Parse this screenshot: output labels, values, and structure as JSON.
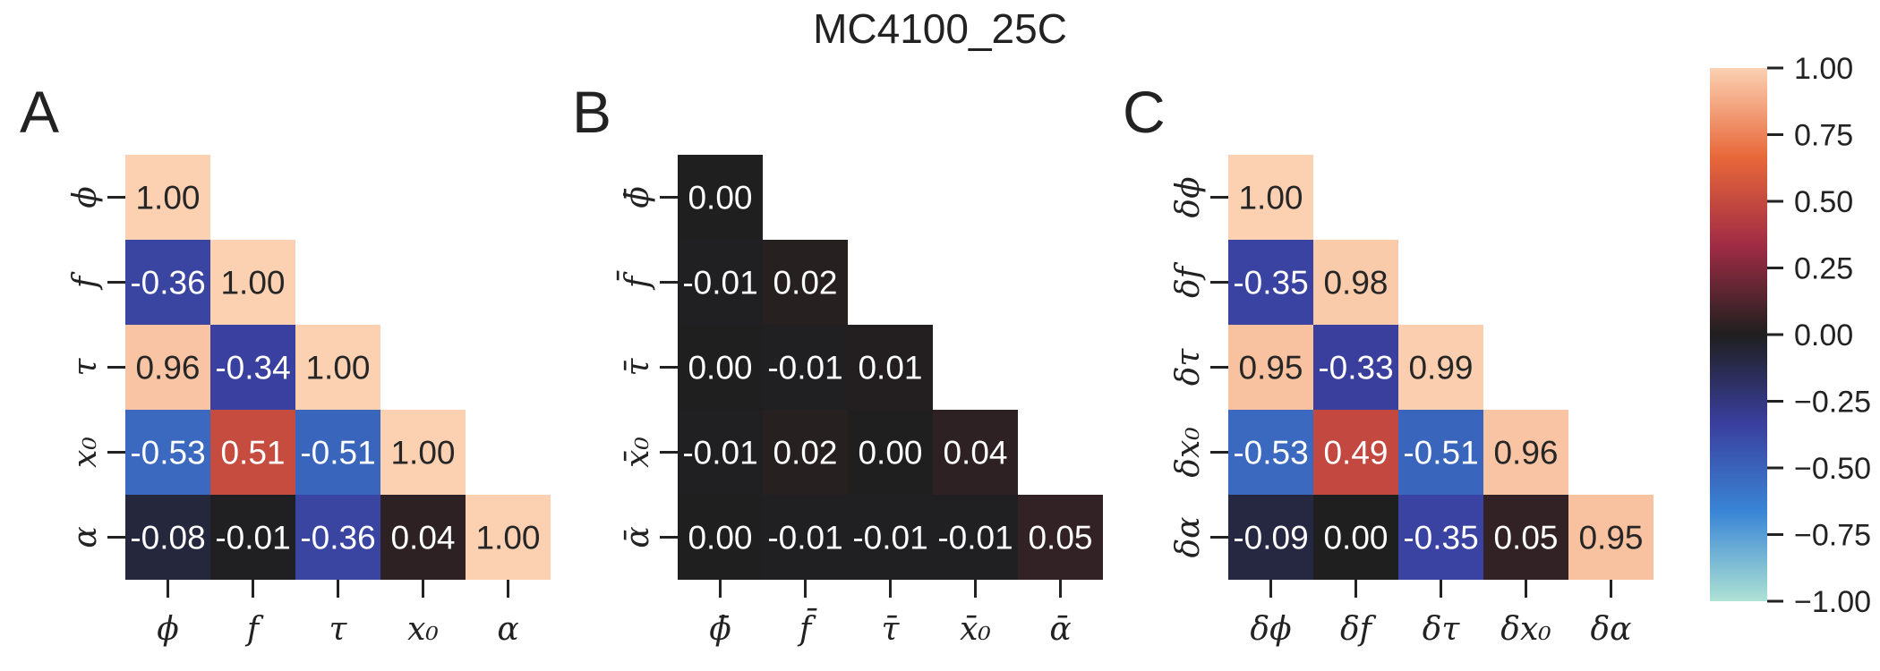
{
  "chart_data": {
    "type": "heatmap",
    "title": "MC4100_25C",
    "colorbar": {
      "range": [
        -1.0,
        1.0
      ],
      "ticks": [
        "1.00",
        "0.75",
        "0.50",
        "0.25",
        "0.00",
        "−0.25",
        "−0.50",
        "−0.75",
        "−1.00"
      ],
      "colors": [
        "#aee2d4",
        "#3a86d6",
        "#3a3f9e",
        "#1f1f1f",
        "#a02c45",
        "#e8683a",
        "#fbd1b2"
      ]
    },
    "panels": [
      {
        "letter": "A",
        "labels": [
          "ϕ",
          "f",
          "τ",
          "x₀",
          "α"
        ],
        "matrix": [
          [
            1.0
          ],
          [
            -0.36,
            1.0
          ],
          [
            0.96,
            -0.34,
            1.0
          ],
          [
            -0.53,
            0.51,
            -0.51,
            1.0
          ],
          [
            -0.08,
            -0.01,
            -0.36,
            0.04,
            1.0
          ]
        ]
      },
      {
        "letter": "B",
        "labels": [
          "ϕ̄",
          "f̄",
          "τ̄",
          "x̄₀",
          "ᾱ"
        ],
        "matrix": [
          [
            0.0
          ],
          [
            -0.01,
            0.02
          ],
          [
            0.0,
            -0.01,
            0.01
          ],
          [
            -0.01,
            0.02,
            -0.0,
            0.04
          ],
          [
            0.0,
            -0.01,
            -0.01,
            -0.01,
            0.05
          ]
        ]
      },
      {
        "letter": "C",
        "labels": [
          "δϕ",
          "δf",
          "δτ",
          "δx₀",
          "δα"
        ],
        "matrix": [
          [
            1.0
          ],
          [
            -0.35,
            0.98
          ],
          [
            0.95,
            -0.33,
            0.99
          ],
          [
            -0.53,
            0.49,
            -0.51,
            0.96
          ],
          [
            -0.09,
            0.0,
            -0.35,
            0.05,
            0.95
          ]
        ]
      }
    ]
  }
}
